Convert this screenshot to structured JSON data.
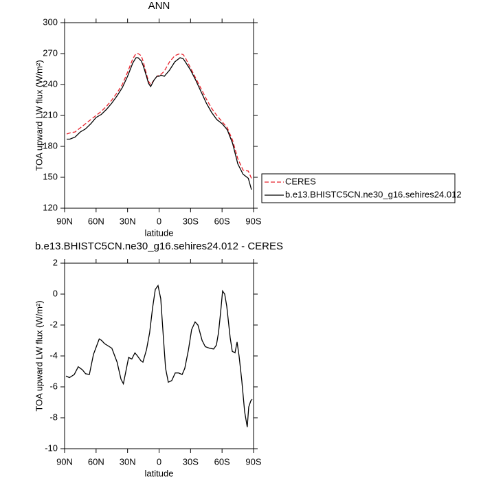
{
  "chart_data": [
    {
      "type": "line",
      "title": "ANN",
      "xlabel": "latitude",
      "ylabel": "TOA upward LW flux (W/m²)",
      "x": [
        88,
        85,
        80,
        75,
        70,
        65,
        60,
        55,
        50,
        45,
        40,
        35,
        30,
        25,
        22,
        20,
        17,
        15,
        12,
        10,
        8,
        5,
        2,
        0,
        -2,
        -5,
        -10,
        -15,
        -20,
        -23,
        -25,
        -30,
        -35,
        -40,
        -45,
        -50,
        -55,
        -60,
        -65,
        -70,
        -75,
        -80,
        -85,
        -88
      ],
      "series": [
        {
          "name": "CERES",
          "color": "#e8202a",
          "dashed": true,
          "values": [
            192,
            193,
            194,
            198,
            202,
            206,
            210,
            214,
            219,
            225,
            232,
            240,
            252,
            265,
            270,
            270,
            268,
            262,
            250,
            243,
            240,
            244,
            248,
            249,
            250,
            253,
            262,
            268,
            270,
            269,
            266,
            256,
            246,
            236,
            226,
            217,
            210,
            204,
            198,
            186,
            168,
            157,
            156,
            149
          ]
        },
        {
          "name": "b.e13.BHISTC5CN.ne30_g16.sehires24.012",
          "color": "#000000",
          "dashed": false,
          "values": [
            187,
            187,
            189,
            194,
            197,
            202,
            208,
            211,
            216,
            222,
            229,
            237,
            248,
            261,
            266,
            266,
            263,
            258,
            248,
            241,
            238,
            244,
            248,
            248,
            249,
            248,
            254,
            262,
            266,
            265,
            262,
            254,
            244,
            233,
            222,
            213,
            206,
            202,
            196,
            183,
            163,
            153,
            149,
            138
          ]
        }
      ],
      "xlim": [
        90,
        -90
      ],
      "xticks": [
        {
          "value": 90,
          "label": "90N"
        },
        {
          "value": 60,
          "label": "60N"
        },
        {
          "value": 30,
          "label": "30N"
        },
        0,
        {
          "value": -30,
          "label": "30S"
        },
        {
          "value": -60,
          "label": "60S"
        },
        {
          "value": -90,
          "label": "90S"
        }
      ],
      "ylim": [
        120,
        300
      ],
      "yticks": [
        120,
        150,
        180,
        210,
        240,
        270,
        300
      ],
      "legend": "outside-right"
    },
    {
      "type": "line",
      "title": "b.e13.BHISTC5CN.ne30_g16.sehires24.012 - CERES",
      "xlabel": "latitude",
      "ylabel": "TOA upward LW flux (W/m²)",
      "x": [
        88.7,
        85.4,
        80.8,
        77,
        73,
        70,
        66.4,
        62.5,
        57,
        54.7,
        52,
        45,
        40,
        36.3,
        34,
        29,
        26,
        23,
        20.6,
        17.4,
        15.4,
        12,
        9,
        6.2,
        3.6,
        1,
        -1.6,
        -4.2,
        -6.2,
        -8.8,
        -12,
        -15.4,
        -18.6,
        -22,
        -24.5,
        -28,
        -31,
        -34.3,
        -37,
        -41,
        -44,
        -48,
        -52,
        -54.6,
        -56.6,
        -58.6,
        -60.5,
        -62.5,
        -64.5,
        -67.7,
        -69.7,
        -72.3,
        -74.3,
        -76.2,
        -78.8,
        -81.5,
        -84,
        -85.4,
        -87.4,
        -88.7
      ],
      "series": [
        {
          "color": "#000000",
          "dashed": false,
          "values": [
            -5.3,
            -5.4,
            -5.2,
            -4.7,
            -4.9,
            -5.15,
            -5.2,
            -3.9,
            -2.9,
            -3.0,
            -3.2,
            -3.5,
            -4.4,
            -5.5,
            -5.8,
            -4.1,
            -4.2,
            -3.8,
            -4.0,
            -4.3,
            -4.4,
            -3.6,
            -2.5,
            -0.9,
            0.3,
            0.55,
            -0.3,
            -2.9,
            -4.8,
            -5.7,
            -5.6,
            -5.1,
            -5.1,
            -5.2,
            -4.8,
            -3.6,
            -2.3,
            -1.8,
            -2.0,
            -3.0,
            -3.4,
            -3.5,
            -3.55,
            -3.3,
            -2.5,
            -1.2,
            0.2,
            0.0,
            -0.8,
            -2.8,
            -3.7,
            -3.8,
            -3.1,
            -4.0,
            -5.6,
            -7.6,
            -8.6,
            -7.3,
            -6.9,
            -6.8
          ]
        }
      ],
      "xlim": [
        90,
        -90
      ],
      "xticks": [
        {
          "value": 90,
          "label": "90N"
        },
        {
          "value": 60,
          "label": "60N"
        },
        {
          "value": 30,
          "label": "30N"
        },
        0,
        {
          "value": -30,
          "label": "30S"
        },
        {
          "value": -60,
          "label": "60S"
        },
        {
          "value": -90,
          "label": "90S"
        }
      ],
      "ylim": [
        -10,
        2
      ],
      "yticks": [
        -10,
        -8,
        -6,
        -4,
        -2,
        0,
        2
      ]
    }
  ]
}
